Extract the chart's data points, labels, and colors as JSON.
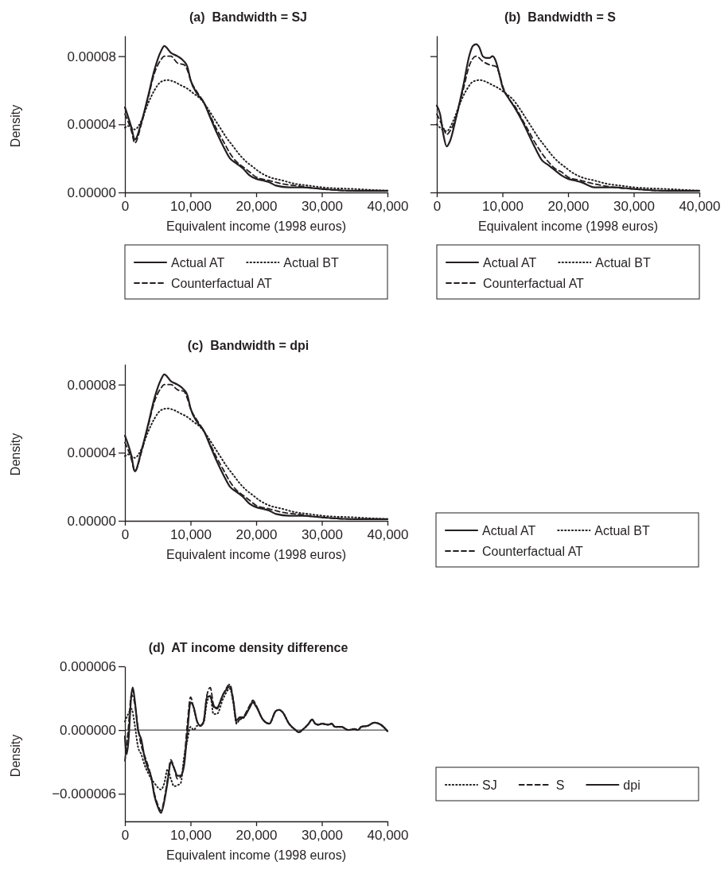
{
  "chart_data": [
    {
      "type": "line",
      "title": "(a)  Bandwidth = SJ",
      "xlabel": "Equivalent income (1998 euros)",
      "ylabel": "Density",
      "xlim": [
        0,
        40000
      ],
      "ylim": [
        0,
        9.2e-05
      ],
      "xticks": [
        {
          "value": 0,
          "label": "0"
        },
        {
          "value": 10000,
          "label": "10,000"
        },
        {
          "value": 20000,
          "label": "20,000"
        },
        {
          "value": 30000,
          "label": "30,000"
        },
        {
          "value": 40000,
          "label": "40,000"
        }
      ],
      "yticks": [
        {
          "value": 0,
          "label": "0.00000"
        },
        {
          "value": 4e-05,
          "label": "0.00004"
        },
        {
          "value": 8e-05,
          "label": "0.00008"
        }
      ],
      "legend": "bottom",
      "series": [
        {
          "name": "Actual AT",
          "color": "#231f20",
          "line_style": "solid",
          "x": [
            0,
            1000,
            1500,
            2500,
            3500,
            4500,
            5500,
            6000,
            7000,
            8000,
            9000,
            9500,
            10000,
            11000,
            12000,
            13000,
            14000,
            15000,
            16000,
            17000,
            18000,
            19000,
            20000,
            21000,
            22000,
            23000,
            25000,
            27000,
            30000,
            35000,
            40000
          ],
          "values": [
            5e-05,
            3.8e-05,
            3.1e-05,
            4.1e-05,
            5.6e-05,
            7.2e-05,
            8.3e-05,
            8.6e-05,
            8.2e-05,
            8e-05,
            7.7e-05,
            7.4e-05,
            6.6e-05,
            5.8e-05,
            5.3e-05,
            4.4e-05,
            3.5e-05,
            2.7e-05,
            2e-05,
            1.7e-05,
            1.4e-05,
            1e-05,
            8e-06,
            7e-06,
            6e-06,
            4e-06,
            3e-06,
            3e-06,
            2e-06,
            1e-06,
            1e-06
          ]
        },
        {
          "name": "Actual BT",
          "color": "#231f20",
          "line_style": "dotted",
          "x": [
            0,
            500,
            1500,
            2500,
            3500,
            4500,
            5500,
            6500,
            7500,
            8500,
            9500,
            10500,
            11500,
            12500,
            13500,
            14500,
            15500,
            16500,
            17500,
            18500,
            19500,
            20500,
            22000,
            24000,
            26000,
            28000,
            30000,
            35000,
            40000
          ],
          "values": [
            3.8e-05,
            3.9e-05,
            3.7e-05,
            4.2e-05,
            5.2e-05,
            6e-05,
            6.5e-05,
            6.6e-05,
            6.5e-05,
            6.3e-05,
            6.1e-05,
            5.8e-05,
            5.5e-05,
            5e-05,
            4.4e-05,
            3.8e-05,
            3.2e-05,
            2.7e-05,
            2.2e-05,
            1.8e-05,
            1.5e-05,
            1.2e-05,
            9e-06,
            7e-06,
            5e-06,
            4e-06,
            3e-06,
            2e-06,
            1e-06
          ]
        },
        {
          "name": "Counterfactual AT",
          "color": "#231f20",
          "line_style": "dashed",
          "x": [
            0,
            1000,
            1500,
            2500,
            3500,
            4500,
            5500,
            6000,
            7000,
            8000,
            9000,
            9500,
            10000,
            11000,
            12000,
            13000,
            14000,
            15000,
            16000,
            17000,
            18000,
            19000,
            20000,
            22000,
            24000,
            26000,
            30000,
            35000,
            40000
          ],
          "values": [
            4.6e-05,
            3.6e-05,
            2.9e-05,
            4e-05,
            5.5e-05,
            7e-05,
            7.8e-05,
            8e-05,
            8e-05,
            7.6e-05,
            7.5e-05,
            7.2e-05,
            6.6e-05,
            5.9e-05,
            5.3e-05,
            4.5e-05,
            3.7e-05,
            3e-05,
            2.3e-05,
            1.8e-05,
            1.5e-05,
            1.2e-05,
            9e-06,
            7e-06,
            5e-06,
            4e-06,
            2e-06,
            1e-06,
            1e-06
          ]
        }
      ]
    },
    {
      "type": "line",
      "title": "(b)  Bandwidth = S",
      "xlabel": "Equivalent income (1998 euros)",
      "xlim": [
        0,
        40000
      ],
      "ylim": [
        0,
        9.2e-05
      ],
      "tick_labels": "x",
      "xticks": [
        {
          "value": 0,
          "label": "0"
        },
        {
          "value": 10000,
          "label": "10,000"
        },
        {
          "value": 20000,
          "label": "20,000"
        },
        {
          "value": 30000,
          "label": "30,000"
        },
        {
          "value": 40000,
          "label": "40,000"
        }
      ],
      "yticks": [
        {
          "value": 0,
          "label": null
        },
        {
          "value": 4e-05,
          "label": null
        },
        {
          "value": 8e-05,
          "label": null
        }
      ],
      "legend": "bottom",
      "series": [
        {
          "name": "Actual AT",
          "color": "#231f20",
          "line_style": "solid",
          "x": [
            0,
            500,
            1000,
            1500,
            2000,
            3000,
            4000,
            5000,
            5500,
            6000,
            6500,
            7000,
            7500,
            8000,
            8500,
            9000,
            9500,
            10000,
            11000,
            12000,
            13000,
            14000,
            15000,
            16000,
            17000,
            18000,
            19000,
            20000,
            21000,
            22000,
            24000,
            27000,
            30000,
            35000,
            40000
          ],
          "values": [
            5.1e-05,
            4.6e-05,
            3.4e-05,
            2.7e-05,
            3e-05,
            4.5e-05,
            6.2e-05,
            8.1e-05,
            8.6e-05,
            8.7e-05,
            8.5e-05,
            8e-05,
            7.9e-05,
            7.9e-05,
            8e-05,
            7.7e-05,
            7e-05,
            6.2e-05,
            5.5e-05,
            4.9e-05,
            4.2e-05,
            3.4e-05,
            2.6e-05,
            1.9e-05,
            1.6e-05,
            1.3e-05,
            1e-05,
            8e-06,
            7e-06,
            6e-06,
            3e-06,
            3e-06,
            2e-06,
            1e-06,
            1e-06
          ]
        },
        {
          "name": "Actual BT",
          "color": "#231f20",
          "line_style": "dotted",
          "x": [
            0,
            500,
            1500,
            2500,
            3500,
            4500,
            5500,
            6500,
            7500,
            8500,
            9500,
            10500,
            11500,
            12500,
            13500,
            14500,
            15500,
            16500,
            17500,
            18500,
            19500,
            20500,
            22000,
            24000,
            26000,
            28000,
            30000,
            35000,
            40000
          ],
          "values": [
            4e-05,
            3.8e-05,
            3.6e-05,
            4.2e-05,
            5.2e-05,
            6e-05,
            6.5e-05,
            6.6e-05,
            6.5e-05,
            6.3e-05,
            6.1e-05,
            5.8e-05,
            5.5e-05,
            5e-05,
            4.4e-05,
            3.8e-05,
            3.2e-05,
            2.7e-05,
            2.2e-05,
            1.8e-05,
            1.5e-05,
            1.2e-05,
            9e-06,
            7e-06,
            5e-06,
            4e-06,
            3e-06,
            2e-06,
            1e-06
          ]
        },
        {
          "name": "Counterfactual AT",
          "color": "#231f20",
          "line_style": "dashed",
          "x": [
            0,
            1000,
            1500,
            2000,
            3000,
            4000,
            5000,
            6000,
            7000,
            8000,
            9000,
            9500,
            10000,
            11000,
            12000,
            13000,
            14000,
            15000,
            16000,
            17000,
            18000,
            19000,
            20000,
            22000,
            24000,
            27000,
            30000,
            35000,
            40000
          ],
          "values": [
            4.6e-05,
            3.8e-05,
            3.4e-05,
            3.6e-05,
            4.5e-05,
            6e-05,
            7.5e-05,
            8e-05,
            7.7e-05,
            7.5e-05,
            7.4e-05,
            7e-05,
            6.3e-05,
            5.5e-05,
            5e-05,
            4.3e-05,
            3.6e-05,
            2.9e-05,
            2.3e-05,
            1.8e-05,
            1.4e-05,
            1.2e-05,
            9e-06,
            7e-06,
            5e-06,
            3e-06,
            2e-06,
            1e-06,
            1e-06
          ]
        }
      ]
    },
    {
      "type": "line",
      "title": "(c)  Bandwidth = dpi",
      "xlabel": "Equivalent income (1998 euros)",
      "ylabel": "Density",
      "xlim": [
        0,
        40000
      ],
      "ylim": [
        0,
        9.2e-05
      ],
      "xticks": [
        {
          "value": 0,
          "label": "0"
        },
        {
          "value": 10000,
          "label": "10,000"
        },
        {
          "value": 20000,
          "label": "20,000"
        },
        {
          "value": 30000,
          "label": "30,000"
        },
        {
          "value": 40000,
          "label": "40,000"
        }
      ],
      "yticks": [
        {
          "value": 0,
          "label": "0.00000"
        },
        {
          "value": 4e-05,
          "label": "0.00004"
        },
        {
          "value": 8e-05,
          "label": "0.00008"
        }
      ],
      "legend": "right",
      "series": [
        {
          "name": "Actual AT",
          "color": "#231f20",
          "line_style": "solid",
          "x": [
            0,
            1000,
            1500,
            2500,
            3500,
            4500,
            5500,
            6000,
            7000,
            8000,
            9000,
            9500,
            10000,
            11000,
            12000,
            13000,
            14000,
            15000,
            16000,
            17000,
            18000,
            19000,
            20000,
            21000,
            22000,
            23000,
            25000,
            27000,
            30000,
            35000,
            40000
          ],
          "values": [
            5e-05,
            3.8e-05,
            2.9e-05,
            4.1e-05,
            5.6e-05,
            7.2e-05,
            8.3e-05,
            8.6e-05,
            8.2e-05,
            8e-05,
            7.7e-05,
            7.4e-05,
            6.6e-05,
            5.8e-05,
            5.3e-05,
            4.4e-05,
            3.5e-05,
            2.7e-05,
            2e-05,
            1.7e-05,
            1.4e-05,
            1e-05,
            8e-06,
            7e-06,
            6e-06,
            4e-06,
            3e-06,
            3e-06,
            2e-06,
            1e-06,
            1e-06
          ]
        },
        {
          "name": "Actual BT",
          "color": "#231f20",
          "line_style": "dotted",
          "x": [
            0,
            500,
            1500,
            2500,
            3500,
            4500,
            5500,
            6500,
            7500,
            8500,
            9500,
            10500,
            11500,
            12500,
            13500,
            14500,
            15500,
            16500,
            17500,
            18500,
            19500,
            20500,
            22000,
            24000,
            26000,
            28000,
            30000,
            35000,
            40000
          ],
          "values": [
            3.8e-05,
            3.9e-05,
            3.7e-05,
            4.2e-05,
            5.2e-05,
            6e-05,
            6.5e-05,
            6.6e-05,
            6.5e-05,
            6.3e-05,
            6.1e-05,
            5.8e-05,
            5.5e-05,
            5e-05,
            4.4e-05,
            3.8e-05,
            3.2e-05,
            2.7e-05,
            2.2e-05,
            1.8e-05,
            1.5e-05,
            1.2e-05,
            9e-06,
            7e-06,
            5e-06,
            4e-06,
            3e-06,
            2e-06,
            1e-06
          ]
        },
        {
          "name": "Counterfactual AT",
          "color": "#231f20",
          "line_style": "dashed",
          "x": [
            0,
            1000,
            1500,
            2500,
            3500,
            4500,
            5500,
            6000,
            7000,
            8000,
            9000,
            9500,
            10000,
            11000,
            12000,
            13000,
            14000,
            15000,
            16000,
            17000,
            18000,
            19000,
            20000,
            22000,
            24000,
            26000,
            30000,
            35000,
            40000
          ],
          "values": [
            4.6e-05,
            3.6e-05,
            2.9e-05,
            4e-05,
            5.5e-05,
            7e-05,
            7.8e-05,
            8e-05,
            8e-05,
            7.7e-05,
            7.6e-05,
            7.2e-05,
            6.6e-05,
            5.9e-05,
            5.3e-05,
            4.5e-05,
            3.7e-05,
            3e-05,
            2.3e-05,
            1.8e-05,
            1.5e-05,
            1.2e-05,
            9e-06,
            7e-06,
            5e-06,
            4e-06,
            2e-06,
            1e-06,
            1e-06
          ]
        }
      ]
    },
    {
      "type": "line",
      "title": "(d)  AT income density difference",
      "xlabel": "Equivalent income (1998 euros)",
      "ylabel": "Density",
      "xlim": [
        0,
        40000
      ],
      "ylim": [
        -8.6e-06,
        6e-06
      ],
      "xticks": [
        {
          "value": 0,
          "label": "0"
        },
        {
          "value": 10000,
          "label": "10,000"
        },
        {
          "value": 20000,
          "label": "20,000"
        },
        {
          "value": 30000,
          "label": "30,000"
        },
        {
          "value": 40000,
          "label": "40,000"
        }
      ],
      "yticks": [
        {
          "value": -6e-06,
          "label": "−0.000006"
        },
        {
          "value": 0,
          "label": "0.000000"
        },
        {
          "value": 6e-06,
          "label": "0.000006"
        }
      ],
      "legend": "right",
      "ref_lines": [
        {
          "axis": "y",
          "value": 0
        }
      ],
      "series": [
        {
          "name": "SJ",
          "color": "#231f20",
          "line_style": "dotted",
          "x": [
            0,
            500,
            1000,
            1500,
            2000,
            2500,
            3000,
            3500,
            4000,
            4500,
            5000,
            5500,
            6000,
            6500,
            7000,
            7500,
            8000,
            8500,
            9000,
            9500,
            10000,
            10500,
            11000,
            11500,
            12000,
            12500,
            13000,
            13500,
            14000,
            15000,
            16000,
            16500,
            17000,
            17500,
            18000,
            19000,
            19500,
            20000,
            21000,
            22000,
            23000,
            23500,
            24000,
            25000,
            26000,
            26500,
            27000,
            28000,
            28500,
            29000,
            29500,
            30000,
            31000,
            31500,
            32000,
            33000,
            34000,
            35000,
            35500,
            36000,
            37000,
            38000,
            39000,
            40000
          ],
          "values": [
            8e-07,
            1.5e-06,
            2e-06,
            5e-07,
            -1.6e-06,
            -2.3e-06,
            -3.3e-06,
            -4e-06,
            -4.6e-06,
            -5e-06,
            -5.4e-06,
            -5.6e-06,
            -5e-06,
            -3.7e-06,
            -4.6e-06,
            -5.3e-06,
            -5.2e-06,
            -5e-06,
            -2.6e-06,
            -1e-06,
            3e-07,
            0,
            4e-07,
            4e-07,
            7e-07,
            2.6e-06,
            3.2e-06,
            1.5e-06,
            1.5e-06,
            3e-06,
            3.9e-06,
            2.6e-06,
            6e-07,
            1e-06,
            1.1e-06,
            2.2e-06,
            2.7e-06,
            2.3e-06,
            1e-06,
            6e-07,
            1.8e-06,
            1.9e-06,
            1.7e-06,
            6e-07,
            0,
            -2e-07,
            0,
            6e-07,
            1e-06,
            6e-07,
            5e-07,
            6e-07,
            5e-07,
            6e-07,
            3e-07,
            3e-07,
            0,
            1e-07,
            0,
            3e-07,
            4e-07,
            7e-07,
            5e-07,
            -1e-07
          ]
        },
        {
          "name": "S",
          "color": "#231f20",
          "line_style": "dashed",
          "x": [
            0,
            500,
            1000,
            1500,
            2000,
            2500,
            3000,
            3500,
            4000,
            4500,
            5000,
            5500,
            6000,
            6500,
            7000,
            7500,
            8000,
            8500,
            9000,
            9500,
            10000,
            10500,
            11000,
            11500,
            12000,
            12500,
            13000,
            13500,
            14000,
            15000,
            16000,
            16500,
            17000,
            17500,
            18000,
            19000,
            19500,
            20000,
            21000,
            22000,
            23000,
            23500,
            24000,
            25000,
            26000,
            26500,
            27000,
            28000,
            28500,
            29000,
            29500,
            30000,
            31000,
            31500,
            32000,
            33000,
            34000,
            35000,
            35500,
            36000,
            37000,
            38000,
            39000,
            40000
          ],
          "values": [
            -2.9e-06,
            0,
            3.3e-06,
            2.5e-06,
            2e-07,
            -1.5e-06,
            -2.4e-06,
            -3.3e-06,
            -4.4e-06,
            -6e-06,
            -7e-06,
            -7.6e-06,
            -6.5e-06,
            -4.6e-06,
            -2.8e-06,
            -3.6e-06,
            -4.6e-06,
            -4.4e-06,
            -3e-06,
            5e-07,
            3.1e-06,
            2e-06,
            8e-07,
            4e-07,
            9e-07,
            3.3e-06,
            4e-06,
            2.4e-06,
            2e-06,
            3.4e-06,
            4.3e-06,
            2.9e-06,
            7e-07,
            1e-06,
            1.2e-06,
            2.3e-06,
            2.8e-06,
            2.3e-06,
            1e-06,
            6e-07,
            1.8e-06,
            1.9e-06,
            1.7e-06,
            6e-07,
            0,
            -2e-07,
            0,
            6e-07,
            1e-06,
            6e-07,
            5e-07,
            6e-07,
            5e-07,
            6e-07,
            3e-07,
            3e-07,
            0,
            1e-07,
            0,
            3e-07,
            4e-07,
            7e-07,
            5e-07,
            -1e-07
          ]
        },
        {
          "name": "dpi",
          "color": "#231f20",
          "line_style": "solid",
          "x": [
            0,
            250,
            500,
            1000,
            1200,
            1500,
            2000,
            2500,
            3000,
            3500,
            4000,
            4500,
            5000,
            5500,
            6000,
            6500,
            7000,
            7500,
            8000,
            8500,
            9000,
            9500,
            10000,
            10500,
            11000,
            11500,
            12000,
            12500,
            13000,
            13500,
            14000,
            15000,
            16000,
            16500,
            17000,
            17500,
            18000,
            19000,
            19500,
            20000,
            21000,
            22000,
            23000,
            23500,
            24000,
            25000,
            26000,
            26500,
            27000,
            28000,
            28500,
            29000,
            29500,
            30000,
            31000,
            31500,
            32000,
            33000,
            34000,
            35000,
            35500,
            36000,
            37000,
            38000,
            39000,
            40000
          ],
          "values": [
            -6e-07,
            -2.3e-06,
            -1.3e-06,
            3.4e-06,
            4e-06,
            2.8e-06,
            0,
            -9e-07,
            -2.6e-06,
            -3.6e-06,
            -4.4e-06,
            -6.2e-06,
            -7.2e-06,
            -7.8e-06,
            -6.7e-06,
            -4.9e-06,
            -3e-06,
            -3.6e-06,
            -4.3e-06,
            -4.3e-06,
            -3.4e-06,
            -3e-07,
            2.6e-06,
            2.1e-06,
            8e-07,
            4e-07,
            8e-07,
            3.1e-06,
            3.2e-06,
            2.2e-06,
            2.1e-06,
            3.4e-06,
            4.1e-06,
            2.8e-06,
            9e-07,
            1.2e-06,
            1.2e-06,
            2.1e-06,
            2.6e-06,
            2.2e-06,
            1e-06,
            6e-07,
            1.8e-06,
            1.9e-06,
            1.7e-06,
            6e-07,
            0,
            -2e-07,
            0,
            6e-07,
            1e-06,
            6e-07,
            5e-07,
            6e-07,
            5e-07,
            6e-07,
            3e-07,
            3e-07,
            0,
            1e-07,
            0,
            3e-07,
            4e-07,
            7e-07,
            5e-07,
            -1e-07
          ]
        }
      ]
    }
  ]
}
